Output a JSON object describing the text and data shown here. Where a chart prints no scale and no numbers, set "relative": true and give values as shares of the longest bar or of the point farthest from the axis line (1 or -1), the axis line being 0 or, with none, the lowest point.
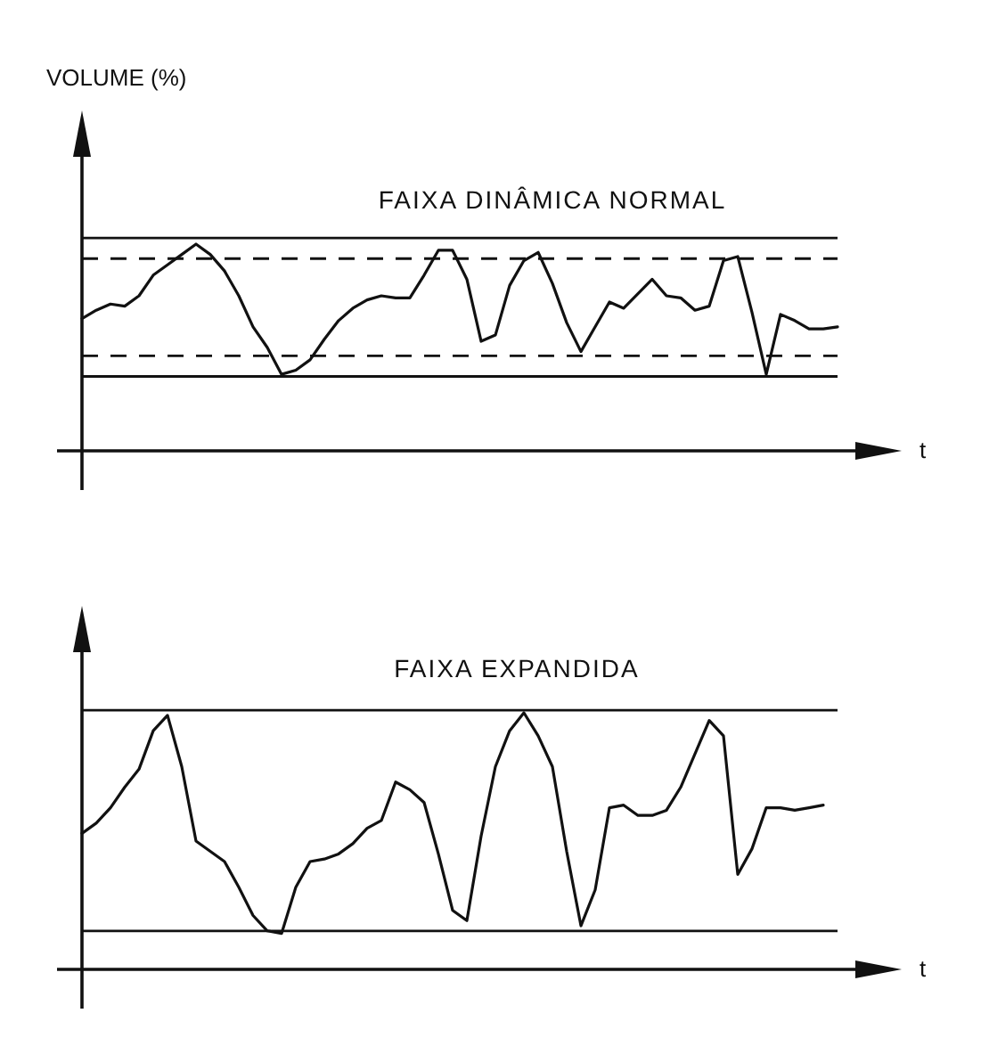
{
  "chart_data": [
    {
      "type": "line",
      "relative": true,
      "ylabel": "VOLUME (%)",
      "title": "FAIXA DINÂMICA NORMAL",
      "xlabel": "t",
      "tick_labels": false,
      "marker": "none",
      "line_style": "solid",
      "categories": [
        null,
        null,
        null,
        null,
        null,
        null,
        null,
        null,
        null,
        null,
        null,
        null,
        null,
        null,
        null,
        null,
        null,
        null,
        null,
        null,
        null,
        null,
        null,
        null,
        null,
        null,
        null,
        null,
        null,
        null,
        null,
        null,
        null,
        null,
        null,
        null,
        null,
        null,
        null,
        null,
        null,
        null,
        null,
        null,
        null,
        null,
        null,
        null,
        null,
        null,
        null,
        null,
        null,
        null
      ],
      "series": [
        {
          "color": "#111111",
          "values": [
            0.64,
            0.68,
            0.71,
            0.7,
            0.75,
            0.85,
            0.9,
            0.95,
            1.0,
            0.95,
            0.87,
            0.75,
            0.6,
            0.5,
            0.37,
            0.39,
            0.44,
            0.54,
            0.63,
            0.69,
            0.73,
            0.75,
            0.74,
            0.74,
            0.85,
            0.97,
            0.97,
            0.83,
            0.53,
            0.56,
            0.8,
            0.92,
            0.96,
            0.81,
            0.62,
            0.48,
            0.6,
            0.72,
            0.69,
            0.76,
            0.83,
            0.75,
            0.74,
            0.68,
            0.7,
            0.92,
            0.94,
            0.67,
            0.37,
            0.66,
            0.63,
            0.59,
            0.59,
            0.6
          ]
        }
      ],
      "ref_lines": [
        {
          "axis": "y",
          "value": 1.03,
          "line_style": "solid"
        },
        {
          "axis": "y",
          "value": 0.93,
          "line_style": "dashed"
        },
        {
          "axis": "y",
          "value": 0.46,
          "line_style": "dashed"
        },
        {
          "axis": "y",
          "value": 0.36,
          "line_style": "solid"
        }
      ]
    },
    {
      "type": "line",
      "relative": true,
      "title": "FAIXA EXPANDIDA",
      "xlabel": "t",
      "tick_labels": false,
      "marker": "none",
      "line_style": "solid",
      "categories": [
        null,
        null,
        null,
        null,
        null,
        null,
        null,
        null,
        null,
        null,
        null,
        null,
        null,
        null,
        null,
        null,
        null,
        null,
        null,
        null,
        null,
        null,
        null,
        null,
        null,
        null,
        null,
        null,
        null,
        null,
        null,
        null,
        null,
        null,
        null,
        null,
        null,
        null,
        null,
        null,
        null,
        null,
        null,
        null,
        null,
        null,
        null,
        null,
        null,
        null,
        null,
        null,
        null
      ],
      "series": [
        {
          "color": "#111111",
          "values": [
            0.53,
            0.57,
            0.63,
            0.71,
            0.78,
            0.93,
            0.99,
            0.79,
            0.5,
            0.46,
            0.42,
            0.32,
            0.21,
            0.15,
            0.14,
            0.32,
            0.42,
            0.43,
            0.45,
            0.49,
            0.55,
            0.58,
            0.73,
            0.7,
            0.65,
            0.45,
            0.23,
            0.19,
            0.52,
            0.79,
            0.93,
            1.0,
            0.91,
            0.79,
            0.46,
            0.17,
            0.31,
            0.63,
            0.64,
            0.6,
            0.6,
            0.62,
            0.71,
            0.84,
            0.97,
            0.91,
            0.37,
            0.47,
            0.63,
            0.63,
            0.62,
            0.63,
            0.64
          ]
        }
      ],
      "ref_lines": [
        {
          "axis": "y",
          "value": 1.01,
          "line_style": "solid"
        },
        {
          "axis": "y",
          "value": 0.15,
          "line_style": "solid"
        }
      ]
    }
  ]
}
